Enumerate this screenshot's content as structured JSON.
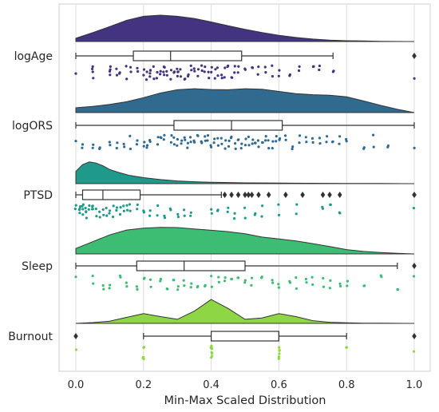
{
  "chart_data": {
    "type": "raincloud",
    "title": "",
    "xlabel": "Min-Max Scaled Distribution",
    "ylabel": "",
    "xlim": [
      -0.05,
      1.05
    ],
    "xticks": [
      0.0,
      0.2,
      0.4,
      0.6,
      0.8,
      1.0
    ],
    "xtick_labels": [
      "0.0",
      "0.2",
      "0.4",
      "0.6",
      "0.8",
      "1.0"
    ],
    "grid": "vertical",
    "legend": "none",
    "categories": [
      "logAge",
      "logORS",
      "PTSD",
      "Sleep",
      "Burnout"
    ],
    "series": [
      {
        "name": "logAge",
        "color": "#433380",
        "density": [
          [
            0.0,
            0.12
          ],
          [
            0.05,
            0.33
          ],
          [
            0.1,
            0.55
          ],
          [
            0.15,
            0.78
          ],
          [
            0.2,
            0.93
          ],
          [
            0.25,
            0.97
          ],
          [
            0.3,
            0.93
          ],
          [
            0.35,
            0.85
          ],
          [
            0.4,
            0.72
          ],
          [
            0.45,
            0.58
          ],
          [
            0.5,
            0.45
          ],
          [
            0.55,
            0.33
          ],
          [
            0.6,
            0.23
          ],
          [
            0.65,
            0.15
          ],
          [
            0.7,
            0.09
          ],
          [
            0.75,
            0.05
          ],
          [
            0.8,
            0.03
          ],
          [
            0.85,
            0.02
          ],
          [
            0.9,
            0.005
          ],
          [
            1.0,
            0.0
          ]
        ],
        "box": {
          "whisker_low": 0.0,
          "q1": 0.17,
          "median": 0.28,
          "q3": 0.49,
          "whisker_high": 0.76
        },
        "outliers": [
          1.0
        ],
        "points": [
          0.0,
          0.05,
          0.05,
          0.1,
          0.1,
          0.12,
          0.13,
          0.15,
          0.16,
          0.18,
          0.2,
          0.21,
          0.22,
          0.22,
          0.23,
          0.24,
          0.25,
          0.26,
          0.26,
          0.27,
          0.28,
          0.29,
          0.3,
          0.3,
          0.31,
          0.32,
          0.33,
          0.34,
          0.35,
          0.36,
          0.37,
          0.38,
          0.39,
          0.4,
          0.41,
          0.42,
          0.43,
          0.44,
          0.45,
          0.46,
          0.47,
          0.48,
          0.5,
          0.52,
          0.54,
          0.56,
          0.58,
          0.6,
          0.63,
          0.66,
          0.7,
          0.72,
          0.76,
          1.0
        ]
      },
      {
        "name": "logORS",
        "color": "#306a8e",
        "density": [
          [
            0.0,
            0.18
          ],
          [
            0.05,
            0.23
          ],
          [
            0.1,
            0.3
          ],
          [
            0.15,
            0.4
          ],
          [
            0.2,
            0.55
          ],
          [
            0.25,
            0.72
          ],
          [
            0.3,
            0.84
          ],
          [
            0.35,
            0.88
          ],
          [
            0.4,
            0.85
          ],
          [
            0.45,
            0.84
          ],
          [
            0.5,
            0.88
          ],
          [
            0.55,
            0.86
          ],
          [
            0.6,
            0.78
          ],
          [
            0.65,
            0.7
          ],
          [
            0.7,
            0.66
          ],
          [
            0.75,
            0.64
          ],
          [
            0.8,
            0.58
          ],
          [
            0.85,
            0.43
          ],
          [
            0.9,
            0.27
          ],
          [
            0.95,
            0.12
          ],
          [
            1.0,
            0.0
          ]
        ],
        "box": {
          "whisker_low": 0.0,
          "q1": 0.29,
          "median": 0.46,
          "q3": 0.61,
          "whisker_high": 1.0
        },
        "outliers": [],
        "points": [
          0.0,
          0.02,
          0.05,
          0.07,
          0.1,
          0.12,
          0.14,
          0.16,
          0.18,
          0.2,
          0.21,
          0.22,
          0.24,
          0.25,
          0.26,
          0.28,
          0.29,
          0.3,
          0.31,
          0.32,
          0.33,
          0.34,
          0.35,
          0.36,
          0.37,
          0.38,
          0.39,
          0.4,
          0.41,
          0.42,
          0.43,
          0.44,
          0.45,
          0.46,
          0.47,
          0.48,
          0.49,
          0.5,
          0.51,
          0.52,
          0.53,
          0.54,
          0.55,
          0.56,
          0.57,
          0.58,
          0.59,
          0.6,
          0.62,
          0.64,
          0.66,
          0.68,
          0.7,
          0.72,
          0.74,
          0.76,
          0.78,
          0.8,
          0.85,
          0.88,
          0.92,
          1.0
        ]
      },
      {
        "name": "PTSD",
        "color": "#1f9a8a",
        "density": [
          [
            0.0,
            0.45
          ],
          [
            0.02,
            0.7
          ],
          [
            0.04,
            0.8
          ],
          [
            0.06,
            0.76
          ],
          [
            0.08,
            0.66
          ],
          [
            0.1,
            0.52
          ],
          [
            0.13,
            0.4
          ],
          [
            0.16,
            0.3
          ],
          [
            0.2,
            0.22
          ],
          [
            0.25,
            0.15
          ],
          [
            0.3,
            0.1
          ],
          [
            0.35,
            0.07
          ],
          [
            0.4,
            0.05
          ],
          [
            0.45,
            0.04
          ],
          [
            0.5,
            0.03
          ],
          [
            0.6,
            0.02
          ],
          [
            0.7,
            0.015
          ],
          [
            0.8,
            0.01
          ],
          [
            0.9,
            0.005
          ],
          [
            1.0,
            0.0
          ]
        ],
        "box": {
          "whisker_low": 0.0,
          "q1": 0.02,
          "median": 0.08,
          "q3": 0.19,
          "whisker_high": 0.43
        },
        "outliers": [
          0.44,
          0.46,
          0.48,
          0.5,
          0.51,
          0.52,
          0.54,
          0.57,
          0.62,
          0.67,
          0.73,
          0.75,
          0.78,
          1.0
        ],
        "points": [
          0.0,
          0.0,
          0.01,
          0.01,
          0.02,
          0.02,
          0.03,
          0.03,
          0.04,
          0.05,
          0.05,
          0.06,
          0.07,
          0.08,
          0.09,
          0.1,
          0.11,
          0.12,
          0.13,
          0.14,
          0.15,
          0.16,
          0.18,
          0.2,
          0.22,
          0.24,
          0.26,
          0.28,
          0.3,
          0.32,
          0.34,
          0.4,
          0.42,
          0.45,
          0.47,
          0.5,
          0.53,
          0.55,
          0.6,
          0.65,
          0.73,
          0.75,
          0.78,
          1.0
        ]
      },
      {
        "name": "Sleep",
        "color": "#3dbc74",
        "density": [
          [
            0.0,
            0.2
          ],
          [
            0.05,
            0.45
          ],
          [
            0.1,
            0.7
          ],
          [
            0.15,
            0.88
          ],
          [
            0.2,
            0.95
          ],
          [
            0.25,
            0.98
          ],
          [
            0.3,
            0.97
          ],
          [
            0.35,
            0.92
          ],
          [
            0.4,
            0.87
          ],
          [
            0.45,
            0.82
          ],
          [
            0.5,
            0.74
          ],
          [
            0.55,
            0.62
          ],
          [
            0.6,
            0.55
          ],
          [
            0.65,
            0.48
          ],
          [
            0.7,
            0.38
          ],
          [
            0.75,
            0.27
          ],
          [
            0.8,
            0.16
          ],
          [
            0.85,
            0.09
          ],
          [
            0.9,
            0.05
          ],
          [
            0.95,
            0.02
          ],
          [
            1.0,
            0.0
          ]
        ],
        "box": {
          "whisker_low": 0.0,
          "q1": 0.18,
          "median": 0.32,
          "q3": 0.5,
          "whisker_high": 0.95
        },
        "outliers": [
          1.0
        ],
        "points": [
          0.0,
          0.05,
          0.08,
          0.1,
          0.13,
          0.15,
          0.18,
          0.2,
          0.22,
          0.25,
          0.27,
          0.29,
          0.3,
          0.32,
          0.34,
          0.36,
          0.38,
          0.4,
          0.42,
          0.44,
          0.46,
          0.48,
          0.5,
          0.52,
          0.55,
          0.58,
          0.6,
          0.63,
          0.65,
          0.68,
          0.7,
          0.73,
          0.75,
          0.78,
          0.8,
          0.85,
          0.9,
          0.95,
          1.0
        ]
      },
      {
        "name": "Burnout",
        "color": "#8fd645",
        "density": [
          [
            0.0,
            0.0
          ],
          [
            0.05,
            0.03
          ],
          [
            0.1,
            0.08
          ],
          [
            0.15,
            0.22
          ],
          [
            0.2,
            0.36
          ],
          [
            0.25,
            0.25
          ],
          [
            0.3,
            0.15
          ],
          [
            0.35,
            0.45
          ],
          [
            0.4,
            0.88
          ],
          [
            0.45,
            0.55
          ],
          [
            0.5,
            0.15
          ],
          [
            0.55,
            0.2
          ],
          [
            0.6,
            0.36
          ],
          [
            0.65,
            0.25
          ],
          [
            0.7,
            0.1
          ],
          [
            0.75,
            0.04
          ],
          [
            0.8,
            0.02
          ],
          [
            0.85,
            0.01
          ],
          [
            0.9,
            0.005
          ],
          [
            1.0,
            0.0
          ]
        ],
        "box": {
          "whisker_low": 0.2,
          "q1": 0.4,
          "median": 0.6,
          "q3": 0.6,
          "whisker_high": 0.8
        },
        "outliers": [
          0.0,
          1.0
        ],
        "points": [
          0.0,
          0.2,
          0.2,
          0.2,
          0.4,
          0.4,
          0.4,
          0.4,
          0.6,
          0.6,
          0.6,
          0.8,
          1.0
        ]
      }
    ]
  }
}
